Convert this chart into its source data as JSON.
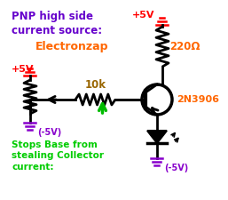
{
  "bg_color": "#ffffff",
  "title_text": "PNP high side\ncurrent source:",
  "title_color": "#6600cc",
  "brand_text": "Electronzap",
  "brand_color": "#ff6600",
  "v5v_color": "#ff0000",
  "gnd_color": "#8800cc",
  "green_color": "#00bb00",
  "resistor_label": "10k",
  "resistor_color": "#996600",
  "transistor_label": "2N3906",
  "transistor_color": "#ff6600",
  "resistor2_label": "220Ω",
  "resistor2_color": "#ff6600",
  "stops_text": "Stops Base from\nstealing Collector\ncurrent:",
  "stops_color": "#00cc00",
  "black": "#000000"
}
